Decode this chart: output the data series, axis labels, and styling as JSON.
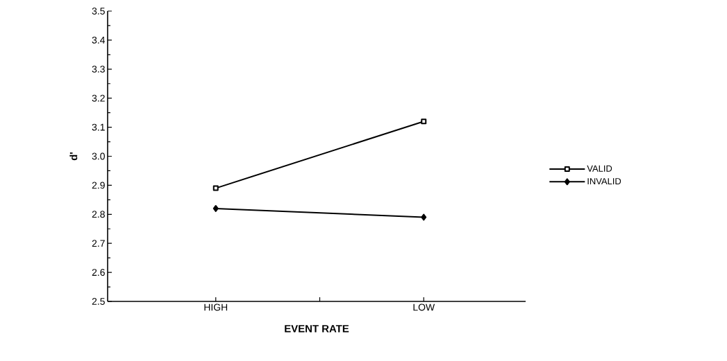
{
  "chart_data": {
    "type": "line",
    "xlabel": "EVENT RATE",
    "ylabel": "d'",
    "categories": [
      "HIGH",
      "LOW"
    ],
    "series": [
      {
        "name": "VALID",
        "color": "#000000",
        "values": [
          2.89,
          3.12
        ],
        "marker": "square"
      },
      {
        "name": "INVALID",
        "color": "#000000",
        "values": [
          2.82,
          2.79
        ],
        "marker": "diamond"
      }
    ],
    "ylim": [
      2.5,
      3.5
    ],
    "yticks": [
      2.5,
      2.6,
      2.7,
      2.8,
      2.9,
      {
        "value": 3.0,
        "label": "3.0"
      },
      3.1,
      3.2,
      3.3,
      3.4,
      3.5
    ],
    "grid": false,
    "legend": "right",
    "line_style": "solid"
  }
}
